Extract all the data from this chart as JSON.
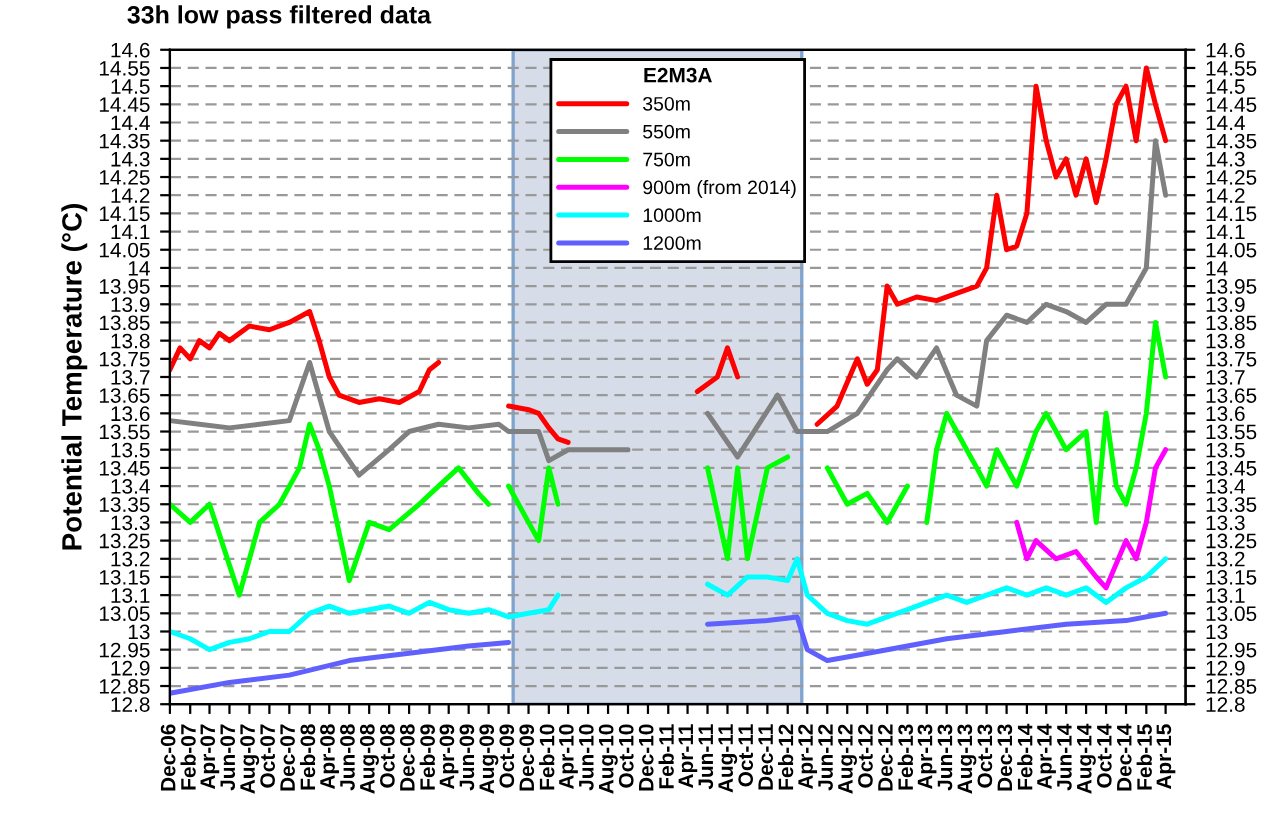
{
  "chart_data": {
    "type": "line",
    "title": "33h low pass filtered data",
    "ylabel": "Potential Temperature (°C)",
    "legend_title": "E2M3A",
    "legend": "top",
    "grid": "y",
    "line_style": "solid",
    "xlim": [
      "2006-12",
      "2015-06"
    ],
    "xticks": [
      {
        "value": "2006-12",
        "label": "Dec-06"
      },
      {
        "value": "2007-02",
        "label": "Feb-07"
      },
      {
        "value": "2007-04",
        "label": "Apr-07"
      },
      {
        "value": "2007-06",
        "label": "Jun-07"
      },
      {
        "value": "2007-08",
        "label": "Aug-07"
      },
      {
        "value": "2007-10",
        "label": "Oct-07"
      },
      {
        "value": "2007-12",
        "label": "Dec-07"
      },
      {
        "value": "2008-02",
        "label": "Feb-08"
      },
      {
        "value": "2008-04",
        "label": "Apr-08"
      },
      {
        "value": "2008-06",
        "label": "Jun-08"
      },
      {
        "value": "2008-08",
        "label": "Aug-08"
      },
      {
        "value": "2008-10",
        "label": "Oct-08"
      },
      {
        "value": "2008-12",
        "label": "Dec-08"
      },
      {
        "value": "2009-02",
        "label": "Feb-09"
      },
      {
        "value": "2009-04",
        "label": "Apr-09"
      },
      {
        "value": "2009-06",
        "label": "Jun-09"
      },
      {
        "value": "2009-08",
        "label": "Aug-09"
      },
      {
        "value": "2009-10",
        "label": "Oct-09"
      },
      {
        "value": "2009-12",
        "label": "Dec-09"
      },
      {
        "value": "2010-02",
        "label": "Feb-10"
      },
      {
        "value": "2010-04",
        "label": "Apr-10"
      },
      {
        "value": "2010-06",
        "label": "Jun-10"
      },
      {
        "value": "2010-08",
        "label": "Aug-10"
      },
      {
        "value": "2010-10",
        "label": "Oct-10"
      },
      {
        "value": "2010-12",
        "label": "Dec-10"
      },
      {
        "value": "2011-02",
        "label": "Feb-11"
      },
      {
        "value": "2011-04",
        "label": "Apr-11"
      },
      {
        "value": "2011-06",
        "label": "Jun-11"
      },
      {
        "value": "2011-08",
        "label": "Aug-11"
      },
      {
        "value": "2011-10",
        "label": "Oct-11"
      },
      {
        "value": "2011-12",
        "label": "Dec-11"
      },
      {
        "value": "2012-02",
        "label": "Feb-12"
      },
      {
        "value": "2012-04",
        "label": "Apr-12"
      },
      {
        "value": "2012-06",
        "label": "Jun-12"
      },
      {
        "value": "2012-08",
        "label": "Aug-12"
      },
      {
        "value": "2012-10",
        "label": "Oct-12"
      },
      {
        "value": "2012-12",
        "label": "Dec-12"
      },
      {
        "value": "2013-02",
        "label": "Feb-13"
      },
      {
        "value": "2013-04",
        "label": "Apr-13"
      },
      {
        "value": "2013-06",
        "label": "Jun-13"
      },
      {
        "value": "2013-08",
        "label": "Aug-13"
      },
      {
        "value": "2013-10",
        "label": "Oct-13"
      },
      {
        "value": "2013-12",
        "label": "Dec-13"
      },
      {
        "value": "2014-02",
        "label": "Feb-14"
      },
      {
        "value": "2014-04",
        "label": "Apr-14"
      },
      {
        "value": "2014-06",
        "label": "Jun-14"
      },
      {
        "value": "2014-08",
        "label": "Aug-14"
      },
      {
        "value": "2014-10",
        "label": "Oct-14"
      },
      {
        "value": "2014-12",
        "label": "Dec-14"
      },
      {
        "value": "2015-02",
        "label": "Feb-15"
      },
      {
        "value": "2015-04",
        "label": "Apr-15"
      }
    ],
    "ylim": [
      12.8,
      14.6
    ],
    "yticks": [
      12.8,
      12.85,
      12.9,
      12.95,
      13,
      13.05,
      13.1,
      13.15,
      13.2,
      13.25,
      13.3,
      13.35,
      13.4,
      13.45,
      13.5,
      13.55,
      13.6,
      13.65,
      13.7,
      13.75,
      13.8,
      13.85,
      13.9,
      13.95,
      14,
      14.05,
      14.1,
      14.15,
      14.2,
      14.25,
      14.3,
      14.35,
      14.4,
      14.45,
      14.5,
      14.55,
      14.6
    ],
    "y2lim": [
      12.8,
      14.6
    ],
    "y2ticks": [
      12.8,
      12.85,
      12.9,
      12.95,
      13,
      13.05,
      13.1,
      13.15,
      13.2,
      13.25,
      13.3,
      13.35,
      13.4,
      13.45,
      13.5,
      13.55,
      13.6,
      13.65,
      13.7,
      13.75,
      13.8,
      13.85,
      13.9,
      13.95,
      14,
      14.05,
      14.1,
      14.15,
      14.2,
      14.25,
      14.3,
      14.35,
      14.4,
      14.45,
      14.5,
      14.55,
      14.6
    ],
    "bands": [
      {
        "axis": "x",
        "from": "2009-10-15",
        "to": "2012-03-15",
        "color": "#c5cfdf"
      }
    ],
    "series": [
      {
        "name": "350m",
        "color": "#ff0000",
        "x": [
          "2006-12",
          "2007-01",
          "2007-02",
          "2007-03",
          "2007-04",
          "2007-05",
          "2007-06",
          "2007-08",
          "2007-10",
          "2007-12",
          "2008-02",
          "2008-03",
          "2008-04",
          "2008-05",
          "2008-07",
          "2008-09",
          "2008-11",
          "2009-01",
          "2009-02",
          "2009-03",
          "2009-06",
          "2009-10",
          "2009-12",
          "2010-01",
          "2010-02",
          "2010-03",
          "2010-04",
          "2010-12",
          "2011-05",
          "2011-07",
          "2011-08",
          "2011-09",
          "2012-02",
          "2012-05",
          "2012-07",
          "2012-09",
          "2012-10",
          "2012-11",
          "2012-12",
          "2013-01",
          "2013-03",
          "2013-05",
          "2013-07",
          "2013-09",
          "2013-10",
          "2013-11",
          "2013-12",
          "2014-01",
          "2014-02",
          "2014-03",
          "2014-04",
          "2014-05",
          "2014-06",
          "2014-07",
          "2014-08",
          "2014-09",
          "2014-10",
          "2014-11",
          "2014-12",
          "2015-01",
          "2015-02",
          "2015-03",
          "2015-04"
        ],
        "values": [
          13.72,
          13.78,
          13.75,
          13.8,
          13.78,
          13.82,
          13.8,
          13.84,
          13.83,
          13.85,
          13.88,
          13.8,
          13.7,
          13.65,
          13.63,
          13.64,
          13.63,
          13.66,
          13.72,
          13.74,
          null,
          13.62,
          13.61,
          13.6,
          13.56,
          13.53,
          13.52,
          null,
          13.66,
          13.7,
          13.78,
          13.7,
          null,
          13.57,
          13.62,
          13.75,
          13.68,
          13.72,
          13.95,
          13.9,
          13.92,
          13.91,
          13.93,
          13.95,
          14.0,
          14.2,
          14.05,
          14.06,
          14.15,
          14.5,
          14.35,
          14.25,
          14.3,
          14.2,
          14.3,
          14.18,
          14.3,
          14.45,
          14.5,
          14.35,
          14.55,
          14.45,
          14.35
        ]
      },
      {
        "name": "550m",
        "color": "#808080",
        "x": [
          "2006-12",
          "2007-03",
          "2007-06",
          "2007-09",
          "2007-12",
          "2008-02",
          "2008-04",
          "2008-07",
          "2008-10",
          "2008-12",
          "2009-03",
          "2009-06",
          "2009-09",
          "2009-10",
          "2010-01",
          "2010-02",
          "2010-04",
          "2010-10",
          "2011-02",
          "2011-06",
          "2011-09",
          "2012-01",
          "2012-03",
          "2012-06",
          "2012-09",
          "2012-12",
          "2013-01",
          "2013-03",
          "2013-05",
          "2013-07",
          "2013-09",
          "2013-10",
          "2013-12",
          "2014-02",
          "2014-04",
          "2014-06",
          "2014-08",
          "2014-10",
          "2014-12",
          "2015-02",
          "2015-03",
          "2015-04"
        ],
        "values": [
          13.58,
          13.57,
          13.56,
          13.57,
          13.58,
          13.74,
          13.55,
          13.43,
          13.5,
          13.55,
          13.57,
          13.56,
          13.57,
          13.55,
          13.55,
          13.47,
          13.5,
          13.5,
          null,
          13.6,
          13.48,
          13.65,
          13.55,
          13.55,
          13.6,
          13.72,
          13.75,
          13.7,
          13.78,
          13.65,
          13.62,
          13.8,
          13.87,
          13.85,
          13.9,
          13.88,
          13.85,
          13.9,
          13.9,
          14.0,
          14.35,
          14.2
        ]
      },
      {
        "name": "750m",
        "color": "#00ff00",
        "x": [
          "2006-12",
          "2007-02",
          "2007-04",
          "2007-07",
          "2007-09",
          "2007-11",
          "2008-01",
          "2008-02",
          "2008-03",
          "2008-04",
          "2008-06",
          "2008-08",
          "2008-10",
          "2009-01",
          "2009-03",
          "2009-05",
          "2009-07",
          "2009-08",
          "2009-09",
          "2009-10",
          "2009-12",
          "2010-01",
          "2010-02",
          "2010-03",
          "2010-09",
          "2011-06",
          "2011-08",
          "2011-09",
          "2011-10",
          "2011-12",
          "2012-02",
          "2012-04",
          "2012-06",
          "2012-08",
          "2012-10",
          "2012-12",
          "2013-02",
          "2013-03",
          "2013-04",
          "2013-05",
          "2013-06",
          "2013-08",
          "2013-09",
          "2013-10",
          "2013-11",
          "2014-01",
          "2014-03",
          "2014-04",
          "2014-06",
          "2014-08",
          "2014-09",
          "2014-10",
          "2014-11",
          "2014-12",
          "2015-01",
          "2015-02",
          "2015-03",
          "2015-04"
        ],
        "values": [
          13.35,
          13.3,
          13.35,
          13.1,
          13.3,
          13.35,
          13.45,
          13.57,
          13.5,
          13.4,
          13.14,
          13.3,
          13.28,
          13.35,
          13.4,
          13.45,
          13.38,
          13.35,
          null,
          13.4,
          13.3,
          13.25,
          13.45,
          13.35,
          null,
          13.45,
          13.2,
          13.45,
          13.2,
          13.45,
          13.48,
          null,
          13.45,
          13.35,
          13.38,
          13.3,
          13.4,
          null,
          13.3,
          13.5,
          13.6,
          13.5,
          13.45,
          13.4,
          13.5,
          13.4,
          13.55,
          13.6,
          13.5,
          13.55,
          13.3,
          13.6,
          13.4,
          13.35,
          13.45,
          13.6,
          13.85,
          13.7
        ]
      },
      {
        "name": "900m (from 2014)",
        "color": "#ff00ff",
        "x": [
          "2014-01",
          "2014-02",
          "2014-03",
          "2014-05",
          "2014-07",
          "2014-09",
          "2014-10",
          "2014-12",
          "2015-01",
          "2015-02",
          "2015-03",
          "2015-04"
        ],
        "values": [
          13.3,
          13.2,
          13.25,
          13.2,
          13.22,
          13.15,
          13.12,
          13.25,
          13.2,
          13.3,
          13.45,
          13.5
        ]
      },
      {
        "name": "1000m",
        "color": "#00ffff",
        "x": [
          "2006-12",
          "2007-02",
          "2007-04",
          "2007-06",
          "2007-08",
          "2007-10",
          "2007-12",
          "2008-02",
          "2008-04",
          "2008-06",
          "2008-08",
          "2008-10",
          "2008-12",
          "2009-02",
          "2009-04",
          "2009-06",
          "2009-08",
          "2009-10",
          "2009-12",
          "2010-02",
          "2010-03",
          "2010-09",
          "2011-06",
          "2011-08",
          "2011-10",
          "2011-12",
          "2012-02",
          "2012-03",
          "2012-04",
          "2012-06",
          "2012-08",
          "2012-10",
          "2012-12",
          "2013-02",
          "2013-04",
          "2013-06",
          "2013-08",
          "2013-10",
          "2013-12",
          "2014-02",
          "2014-04",
          "2014-06",
          "2014-08",
          "2014-10",
          "2014-12",
          "2015-02",
          "2015-04"
        ],
        "values": [
          13.0,
          12.98,
          12.95,
          12.97,
          12.98,
          13.0,
          13.0,
          13.05,
          13.07,
          13.05,
          13.06,
          13.07,
          13.05,
          13.08,
          13.06,
          13.05,
          13.06,
          13.04,
          13.05,
          13.06,
          13.1,
          null,
          13.13,
          13.1,
          13.15,
          13.15,
          13.14,
          13.2,
          13.1,
          13.05,
          13.03,
          13.02,
          13.04,
          13.06,
          13.08,
          13.1,
          13.08,
          13.1,
          13.12,
          13.1,
          13.12,
          13.1,
          13.12,
          13.08,
          13.12,
          13.15,
          13.2
        ]
      },
      {
        "name": "1200m",
        "color": "#6060ff",
        "x": [
          "2006-12",
          "2007-06",
          "2007-12",
          "2008-06",
          "2008-12",
          "2009-06",
          "2009-10",
          "2010-09",
          "2011-06",
          "2011-12",
          "2012-03",
          "2012-04",
          "2012-06",
          "2012-08",
          "2012-12",
          "2013-06",
          "2013-12",
          "2014-06",
          "2014-12",
          "2015-04"
        ],
        "values": [
          12.83,
          12.86,
          12.88,
          12.92,
          12.94,
          12.96,
          12.97,
          null,
          13.02,
          13.03,
          13.04,
          12.95,
          12.92,
          12.93,
          12.95,
          12.98,
          13.0,
          13.02,
          13.03,
          13.05
        ]
      }
    ]
  }
}
